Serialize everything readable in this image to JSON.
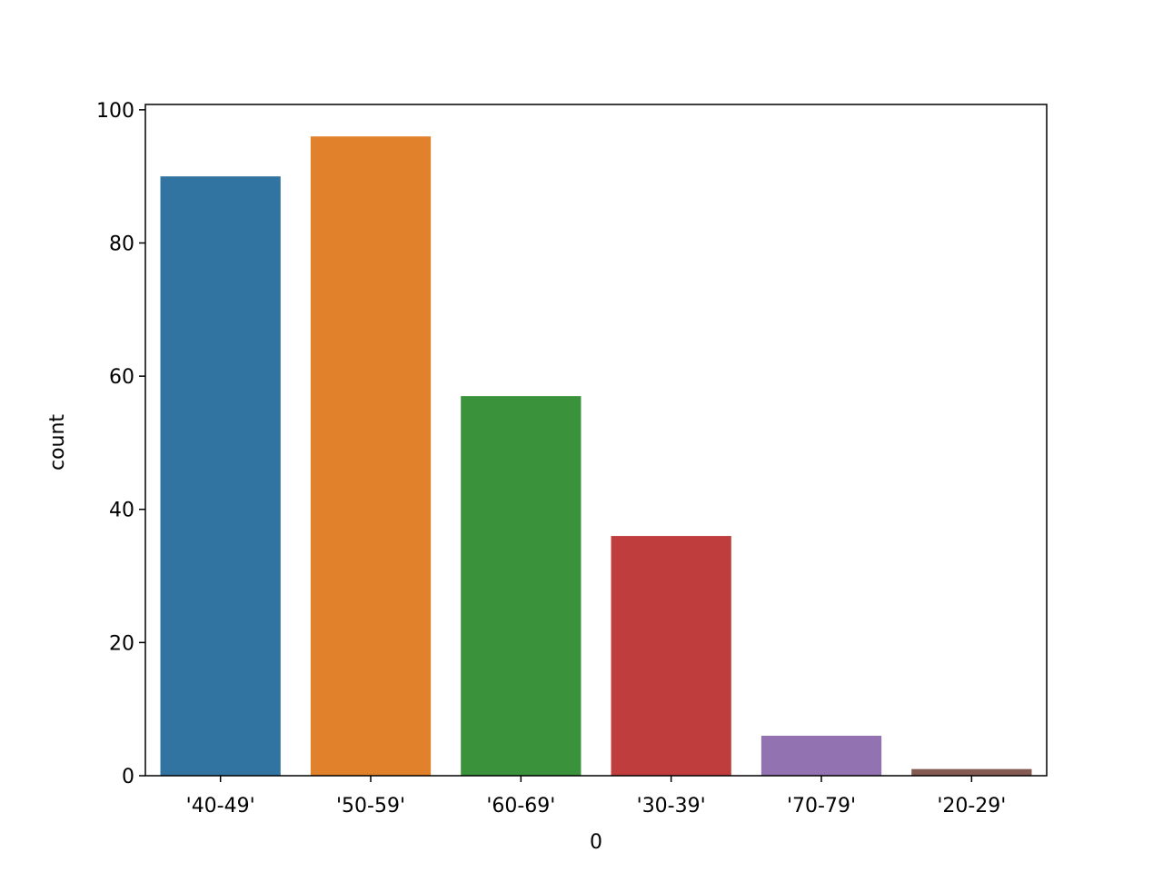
{
  "chart_data": {
    "type": "bar",
    "xlabel": "0",
    "ylabel": "count",
    "categories": [
      "'40-49'",
      "'50-59'",
      "'60-69'",
      "'30-39'",
      "'70-79'",
      "'20-29'"
    ],
    "values": [
      90,
      96,
      57,
      36,
      6,
      1
    ],
    "colors": [
      "#3274a1",
      "#e1812c",
      "#3a923a",
      "#c03d3e",
      "#9372b2",
      "#845b53"
    ],
    "ylim": [
      0,
      100.8
    ],
    "yticks": [
      0,
      20,
      40,
      60,
      80,
      100
    ]
  }
}
